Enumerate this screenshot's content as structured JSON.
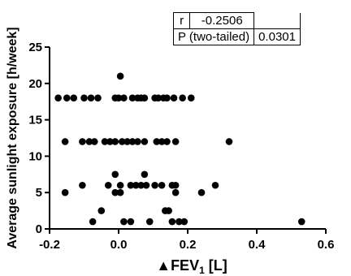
{
  "chart_data": {
    "type": "scatter",
    "xlabel_symbol": "▲",
    "xlabel_text": "FEV",
    "xlabel_subscript": "1",
    "xlabel_unit": " [L]",
    "ylabel": "Average sunlight exposure [h/week]",
    "xlim": [
      -0.2,
      0.6
    ],
    "ylim": [
      0,
      25
    ],
    "xticks": [
      -0.2,
      0.0,
      0.2,
      0.4,
      0.6
    ],
    "xtick_labels": [
      "-0.2",
      "0.0",
      "0.2",
      "0.4",
      "0.6"
    ],
    "yticks": [
      0,
      5,
      10,
      15,
      20,
      25
    ],
    "ytick_labels": [
      "0",
      "5",
      "10",
      "15",
      "20",
      "25"
    ],
    "marker_color": "#000000",
    "grid": false,
    "points": [
      [
        -0.175,
        18
      ],
      [
        -0.15,
        18
      ],
      [
        -0.13,
        18
      ],
      [
        -0.1,
        18
      ],
      [
        -0.08,
        18
      ],
      [
        -0.06,
        18
      ],
      [
        -0.01,
        18
      ],
      [
        0.0,
        18
      ],
      [
        0.015,
        18
      ],
      [
        0.04,
        18
      ],
      [
        0.055,
        18
      ],
      [
        0.065,
        18
      ],
      [
        0.075,
        18
      ],
      [
        0.105,
        18
      ],
      [
        0.115,
        18
      ],
      [
        0.13,
        18
      ],
      [
        0.14,
        18
      ],
      [
        0.16,
        18
      ],
      [
        0.185,
        18
      ],
      [
        0.21,
        18
      ],
      [
        0.005,
        21
      ],
      [
        -0.155,
        12
      ],
      [
        -0.105,
        12
      ],
      [
        -0.085,
        12
      ],
      [
        -0.07,
        12
      ],
      [
        -0.04,
        12
      ],
      [
        -0.025,
        12
      ],
      [
        -0.01,
        12
      ],
      [
        0.01,
        12
      ],
      [
        0.025,
        12
      ],
      [
        0.04,
        12
      ],
      [
        0.055,
        12
      ],
      [
        0.075,
        12
      ],
      [
        0.11,
        12
      ],
      [
        0.125,
        12
      ],
      [
        0.14,
        12
      ],
      [
        0.165,
        12
      ],
      [
        0.32,
        12
      ],
      [
        -0.105,
        6
      ],
      [
        -0.01,
        7.5
      ],
      [
        0.075,
        7.5
      ],
      [
        -0.03,
        6
      ],
      [
        0.005,
        6
      ],
      [
        0.035,
        6
      ],
      [
        0.05,
        6
      ],
      [
        0.065,
        6
      ],
      [
        0.08,
        6
      ],
      [
        0.105,
        6
      ],
      [
        0.125,
        6
      ],
      [
        0.155,
        6
      ],
      [
        0.165,
        6
      ],
      [
        0.28,
        6
      ],
      [
        -0.155,
        5
      ],
      [
        -0.01,
        5
      ],
      [
        0.005,
        5
      ],
      [
        0.165,
        5
      ],
      [
        0.24,
        5
      ],
      [
        -0.05,
        2.5
      ],
      [
        0.135,
        2.5
      ],
      [
        0.145,
        2.5
      ],
      [
        -0.075,
        1
      ],
      [
        0.015,
        1
      ],
      [
        0.035,
        1
      ],
      [
        0.09,
        1
      ],
      [
        0.155,
        1
      ],
      [
        0.175,
        1
      ],
      [
        0.19,
        1
      ],
      [
        0.53,
        1
      ]
    ]
  },
  "stats": {
    "r_label": "r",
    "r_value": "-0.2506",
    "p_label": "P (two-tailed)",
    "p_value": "0.0301"
  }
}
